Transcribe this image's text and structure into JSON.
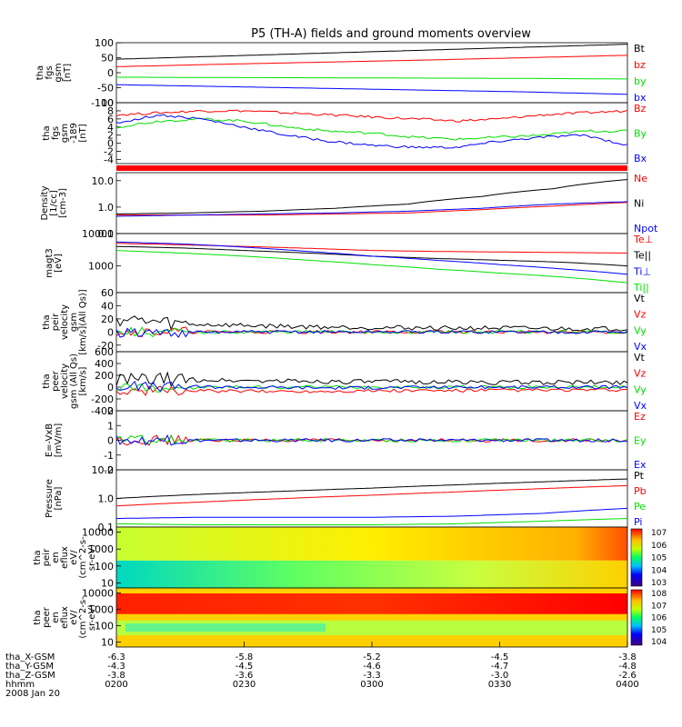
{
  "title": "P5 (TH-A) fields and ground moments overview",
  "colors": {
    "black": "#000000",
    "red": "#ff0000",
    "green": "#00e000",
    "blue": "#0000ff"
  },
  "chart_data": [
    {
      "type": "line",
      "ylabel": [
        "tha",
        "fgs",
        "gsm",
        "[nT]"
      ],
      "ylim": [
        -100,
        100
      ],
      "log": false,
      "ticks": [
        "100",
        "50",
        "0",
        "-50",
        "-100"
      ],
      "series": [
        {
          "name": "Bt",
          "color": "black",
          "values": [
            45,
            55,
            65,
            75,
            85,
            95
          ]
        },
        {
          "name": "bz",
          "color": "red",
          "values": [
            20,
            28,
            35,
            42,
            50,
            58
          ]
        },
        {
          "name": "by",
          "color": "green",
          "values": [
            -15,
            -16,
            -17,
            -18,
            -19,
            -21
          ]
        },
        {
          "name": "bx",
          "color": "blue",
          "values": [
            -40,
            -46,
            -52,
            -58,
            -64,
            -72
          ]
        }
      ]
    },
    {
      "type": "line",
      "ylabel": [
        "tha",
        "fgs",
        "gsm",
        "-189",
        "[nT]"
      ],
      "ylim": [
        -5,
        10
      ],
      "log": false,
      "ticks": [
        "10",
        "8",
        "6",
        "4",
        "2",
        "0",
        "-2",
        "-4"
      ],
      "series": [
        {
          "name": "Bz",
          "color": "red",
          "values": [
            7,
            7.5,
            8,
            8,
            7.5,
            7,
            6.5,
            6,
            5.5,
            6,
            7,
            7.5,
            8
          ]
        },
        {
          "name": "By",
          "color": "green",
          "values": [
            4,
            5.5,
            6,
            5.5,
            4,
            3,
            2.5,
            1.5,
            1,
            1.5,
            2,
            3,
            3
          ]
        },
        {
          "name": "Bx",
          "color": "blue",
          "values": [
            5,
            7,
            6,
            4,
            2,
            0.5,
            -0.5,
            -1,
            -1,
            0.5,
            1.5,
            2,
            -0.5
          ]
        }
      ]
    },
    {
      "type": "line",
      "ylabel": [
        "Density",
        "[1/cc]",
        "[cm-3]"
      ],
      "ylim": [
        0.1,
        20
      ],
      "log": true,
      "ticks": [
        "10.0",
        "1.0",
        "0.1"
      ],
      "series": [
        {
          "name": "Ne",
          "color": "red",
          "values": [
            0.5,
            0.5,
            0.5,
            0.55,
            0.6,
            0.8,
            1.1,
            1.5
          ]
        },
        {
          "name": "Ni",
          "color": "black",
          "values": [
            0.55,
            0.6,
            0.7,
            0.9,
            1.3,
            2.5,
            5,
            11
          ]
        },
        {
          "name": "Npot",
          "color": "blue",
          "values": [
            0.45,
            0.5,
            0.55,
            0.6,
            0.7,
            0.9,
            1.3,
            1.6
          ]
        }
      ]
    },
    {
      "type": "line",
      "ylabel": [
        "magt3",
        "[eV]"
      ],
      "ylim": [
        150,
        10000
      ],
      "log": true,
      "ticks": [
        "10000",
        "1000"
      ],
      "series": [
        {
          "name": "Te⊥",
          "color": "red",
          "values": [
            5000,
            4500,
            4000,
            3500,
            3000,
            2800,
            2700,
            2600,
            2500
          ]
        },
        {
          "name": "Te||",
          "color": "black",
          "values": [
            4000,
            3600,
            3000,
            2500,
            2000,
            1700,
            1500,
            1300,
            1000
          ]
        },
        {
          "name": "Ti⊥",
          "color": "blue",
          "values": [
            5500,
            4800,
            3800,
            2800,
            2000,
            1500,
            1100,
            800,
            550
          ]
        },
        {
          "name": "Ti||",
          "color": "green",
          "values": [
            3000,
            2500,
            2000,
            1500,
            1100,
            800,
            600,
            450,
            300
          ]
        }
      ]
    },
    {
      "type": "line",
      "ylabel": [
        "tha",
        "peir",
        "velocity",
        "gsm",
        "[km/s](All Qs)]"
      ],
      "ylim": [
        -30,
        60
      ],
      "log": false,
      "ticks": [
        "60",
        "40",
        "20",
        "0",
        "-20"
      ],
      "series": [
        {
          "name": "Vt",
          "color": "black",
          "values": [
            20,
            12,
            10,
            8,
            7,
            6,
            6,
            5,
            5
          ]
        },
        {
          "name": "Vz",
          "color": "red",
          "values": [
            0,
            0,
            0,
            0,
            0,
            0,
            0,
            0,
            0
          ]
        },
        {
          "name": "Vy",
          "color": "green",
          "values": [
            0,
            -1,
            0,
            0,
            0,
            0,
            0,
            0,
            0
          ]
        },
        {
          "name": "Vx",
          "color": "blue",
          "values": [
            -2,
            -1,
            0,
            0,
            0,
            0,
            0,
            0,
            0
          ]
        }
      ]
    },
    {
      "type": "line",
      "ylabel": [
        "tha",
        "peer",
        "velocity",
        "gsm (All Qs)",
        "[km/s]"
      ],
      "ylim": [
        -400,
        600
      ],
      "log": false,
      "ticks": [
        "600",
        "400",
        "200",
        "0",
        "-200",
        "-400"
      ],
      "series": [
        {
          "name": "Vt",
          "color": "black",
          "values": [
            120,
            130,
            110,
            100,
            90,
            90,
            80,
            80,
            80
          ]
        },
        {
          "name": "Vz",
          "color": "red",
          "values": [
            -60,
            -60,
            -70,
            -70,
            -60,
            -60,
            -50,
            -50,
            -50
          ]
        },
        {
          "name": "Vy",
          "color": "green",
          "values": [
            -20,
            -10,
            0,
            0,
            0,
            0,
            0,
            0,
            0
          ]
        },
        {
          "name": "Vx",
          "color": "blue",
          "values": [
            20,
            10,
            0,
            -10,
            -10,
            0,
            0,
            0,
            0
          ]
        }
      ]
    },
    {
      "type": "line",
      "ylabel": [
        "E=-VxB",
        "[mV/m]"
      ],
      "ylim": [
        -2,
        2
      ],
      "log": false,
      "ticks": [
        "2",
        "1",
        "0",
        "-1",
        "-2"
      ],
      "series": [
        {
          "name": "Ez",
          "color": "red",
          "values": [
            0,
            0,
            0,
            0,
            0,
            0,
            0,
            0,
            0
          ]
        },
        {
          "name": "Ey",
          "color": "green",
          "values": [
            0,
            0,
            0,
            0,
            0,
            0,
            0,
            0,
            0
          ]
        },
        {
          "name": "Ex",
          "color": "blue",
          "values": [
            0,
            0,
            0,
            0,
            0,
            0,
            0,
            0,
            0
          ]
        }
      ]
    },
    {
      "type": "line",
      "ylabel": [
        "Pressure",
        "[nPa]"
      ],
      "ylim": [
        0.1,
        10
      ],
      "log": true,
      "ticks": [
        "10.0",
        "1.0",
        "0.1"
      ],
      "series": [
        {
          "name": "Pt",
          "color": "black",
          "values": [
            1.0,
            1.4,
            1.8,
            2.3,
            3.0,
            3.8,
            4.8
          ]
        },
        {
          "name": "Pb",
          "color": "red",
          "values": [
            0.55,
            0.75,
            1.0,
            1.3,
            1.7,
            2.2,
            2.8
          ]
        },
        {
          "name": "Pe",
          "color": "green",
          "values": [
            0.13,
            0.12,
            0.12,
            0.12,
            0.13,
            0.16,
            0.2
          ]
        },
        {
          "name": "Pi",
          "color": "blue",
          "values": [
            0.2,
            0.22,
            0.22,
            0.22,
            0.24,
            0.3,
            0.45
          ]
        }
      ]
    },
    {
      "type": "heatmap",
      "ylabel": [
        "tha",
        "peir",
        "en",
        "eflux",
        "eV/",
        "(cm^2-s-",
        "sr-eV)"
      ],
      "ylim": [
        5,
        20000
      ],
      "log": true,
      "ticks": [
        "10000",
        "1000",
        "100",
        "10"
      ],
      "colorbar": {
        "ticks": [
          "7",
          "6",
          "5",
          "4",
          "3"
        ]
      }
    },
    {
      "type": "heatmap",
      "ylabel": [
        "tha",
        "peer",
        "en",
        "eflux",
        "eV/",
        "(cm^2-s-",
        "sr-eV)"
      ],
      "ylim": [
        5,
        20000
      ],
      "log": true,
      "ticks": [
        "10000",
        "1000",
        "100",
        "10"
      ],
      "colorbar": {
        "ticks": [
          "8",
          "7",
          "6",
          "5",
          "4"
        ]
      }
    }
  ],
  "x_axis": {
    "rows": [
      {
        "label": "tha_X-GSM",
        "values": [
          "-6.3",
          "-5.8",
          "-5.2",
          "-4.5",
          "-3.8"
        ]
      },
      {
        "label": "tha_Y-GSM",
        "values": [
          "-4.3",
          "-4.5",
          "-4.6",
          "-4.7",
          "-4.8"
        ]
      },
      {
        "label": "tha_Z-GSM",
        "values": [
          "-3.8",
          "-3.6",
          "-3.3",
          "-3.0",
          "-2.6"
        ]
      },
      {
        "label": "hhmm",
        "values": [
          "0200",
          "0230",
          "0300",
          "0330",
          "0400"
        ]
      }
    ],
    "date": "2008 Jan 20"
  }
}
